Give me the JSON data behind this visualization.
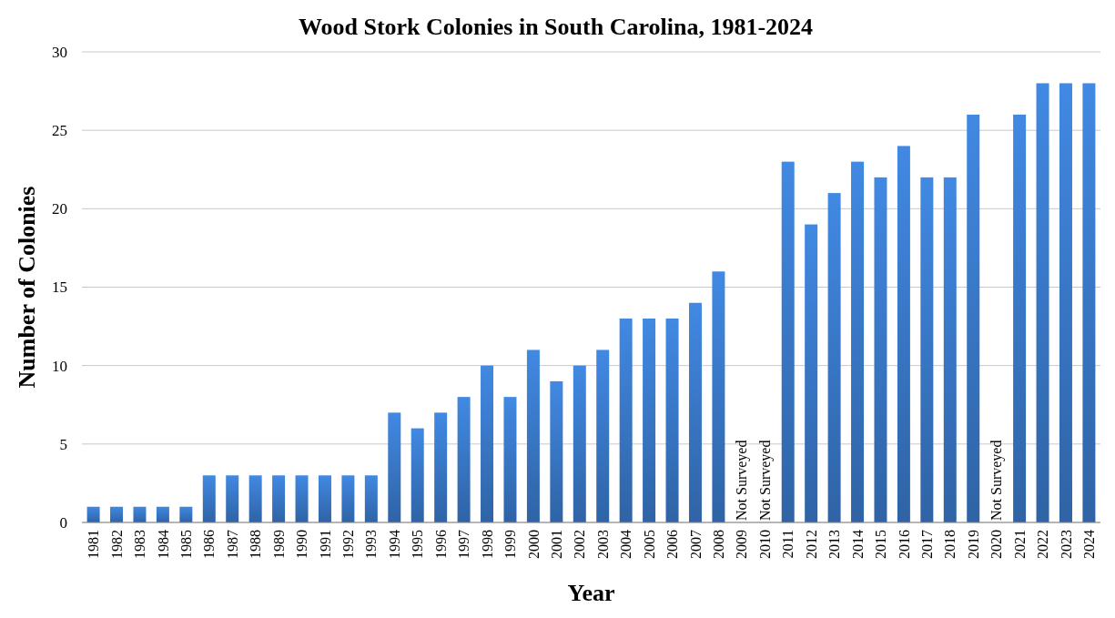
{
  "chart_data": {
    "type": "bar",
    "title": "Wood Stork Colonies in South Carolina, 1981-2024",
    "xlabel": "Year",
    "ylabel": "Number of Colonies",
    "categories": [
      "1981",
      "1982",
      "1983",
      "1984",
      "1985",
      "1986",
      "1987",
      "1988",
      "1989",
      "1990",
      "1991",
      "1992",
      "1993",
      "1994",
      "1995",
      "1996",
      "1997",
      "1998",
      "1999",
      "2000",
      "2001",
      "2002",
      "2003",
      "2004",
      "2005",
      "2006",
      "2007",
      "2008",
      "2009",
      "2010",
      "2011",
      "2012",
      "2013",
      "2014",
      "2015",
      "2016",
      "2017",
      "2018",
      "2019",
      "2020",
      "2021",
      "2022",
      "2023",
      "2024"
    ],
    "values": [
      1,
      1,
      1,
      1,
      1,
      3,
      3,
      3,
      3,
      3,
      3,
      3,
      3,
      7,
      6,
      7,
      8,
      10,
      8,
      11,
      9,
      10,
      11,
      13,
      13,
      13,
      14,
      16,
      null,
      null,
      23,
      19,
      21,
      23,
      22,
      24,
      22,
      22,
      26,
      null,
      26,
      28,
      28,
      28
    ],
    "color": "#3a7bcc",
    "ylim": [
      0,
      30
    ],
    "yticks": [
      0,
      5,
      10,
      15,
      20,
      25,
      30
    ],
    "grid": "y",
    "annotations": [
      "Not Surveyed",
      "Not Surveyed",
      "Not Surveyed"
    ]
  }
}
